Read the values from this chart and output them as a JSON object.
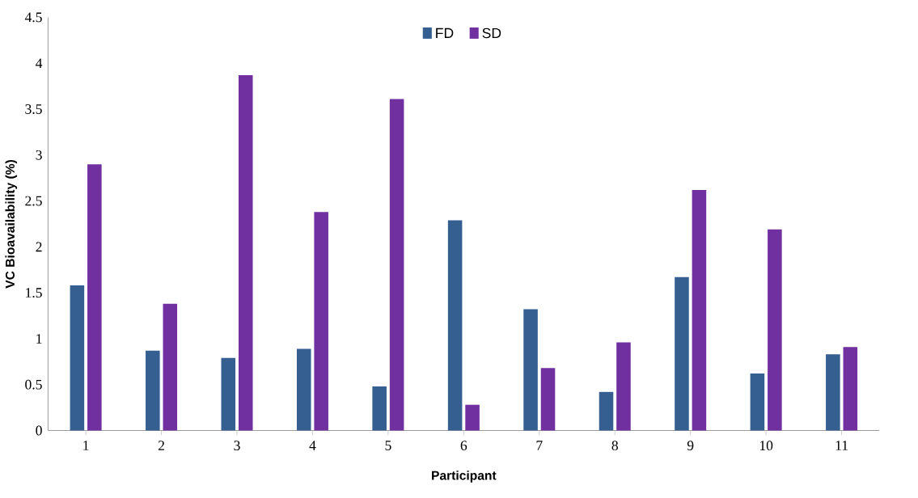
{
  "chart_data": {
    "type": "bar",
    "xlabel": "Participant",
    "ylabel": "VC Bioavailability (%)",
    "categories": [
      "1",
      "2",
      "3",
      "4",
      "5",
      "6",
      "7",
      "8",
      "9",
      "10",
      "11"
    ],
    "series": [
      {
        "name": "FD",
        "color": "#355e91",
        "values": [
          1.58,
          0.87,
          0.79,
          0.89,
          0.48,
          2.29,
          1.32,
          0.42,
          1.67,
          0.62,
          0.83
        ]
      },
      {
        "name": "SD",
        "color": "#7030a0",
        "values": [
          2.9,
          1.38,
          3.87,
          2.38,
          3.61,
          0.28,
          0.68,
          0.96,
          2.62,
          2.19,
          0.91
        ]
      }
    ],
    "ylim": [
      0,
      4.5
    ],
    "yticks": [
      0,
      0.5,
      1,
      1.5,
      2,
      2.5,
      3,
      3.5,
      4,
      4.5
    ],
    "grid": false,
    "legend": "top"
  }
}
